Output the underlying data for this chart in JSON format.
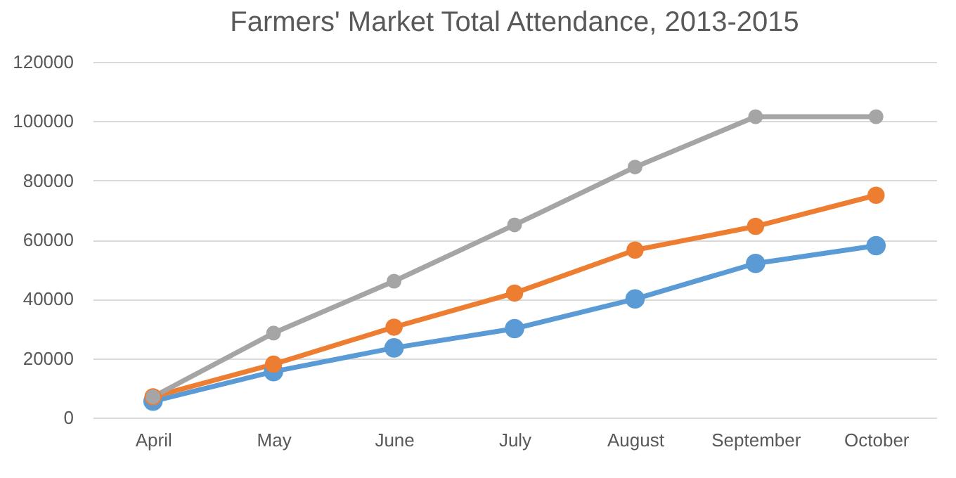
{
  "chart_data": {
    "type": "line",
    "title": "Farmers' Market Total Attendance, 2013-2015",
    "categories": [
      "April",
      "May",
      "June",
      "July",
      "August",
      "September",
      "October"
    ],
    "series": [
      {
        "color": "#5b9bd5",
        "values": [
          5500,
          15500,
          23500,
          30000,
          40000,
          52000,
          58000
        ]
      },
      {
        "color": "#ed7d31",
        "values": [
          7000,
          18000,
          30500,
          42000,
          56500,
          64500,
          75000
        ]
      },
      {
        "color": "#a5a5a5",
        "values": [
          7000,
          28500,
          46000,
          65000,
          84500,
          101500,
          101500
        ]
      }
    ],
    "ylim": [
      0,
      120000
    ],
    "yticks": [
      0,
      20000,
      40000,
      60000,
      80000,
      100000,
      120000
    ],
    "grid": "y",
    "marker": "circle",
    "line_style": "solid"
  }
}
